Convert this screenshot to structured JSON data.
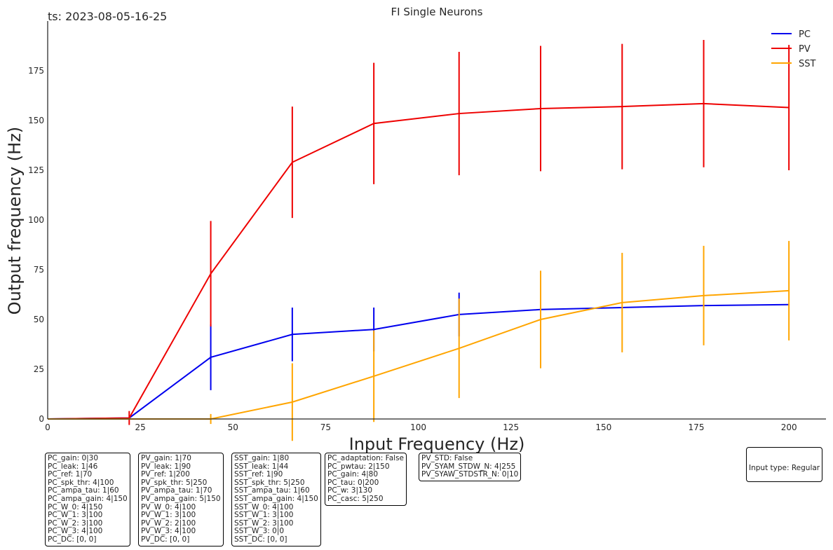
{
  "timestamp": "ts: 2023-08-05-16-25",
  "input_type": "Input type: Regular",
  "chart_data": {
    "type": "line",
    "title": "FI Single Neurons",
    "xlabel": "Input Frequency (Hz)",
    "ylabel": "Output frequency (Hz)",
    "xlim": [
      0,
      210
    ],
    "ylim": [
      0,
      200
    ],
    "xticks": [
      0,
      25,
      50,
      75,
      100,
      125,
      150,
      175,
      200
    ],
    "yticks": [
      0,
      25,
      50,
      75,
      100,
      125,
      150,
      175
    ],
    "grid": false,
    "legend_position": "top-right",
    "x": [
      0,
      22,
      44,
      66,
      88,
      111,
      133,
      155,
      177,
      200
    ],
    "series": [
      {
        "name": "PC",
        "color": "#0000ee",
        "values": [
          0,
          0.5,
          31,
          42.5,
          45,
          52.5,
          55,
          56,
          57,
          57.5
        ],
        "errors": [
          0,
          0,
          16.5,
          13.5,
          11,
          11,
          0,
          0,
          0,
          0
        ]
      },
      {
        "name": "PV",
        "color": "#ee0000",
        "values": [
          0,
          0.5,
          73,
          129,
          148.5,
          153.5,
          156,
          157,
          158.5,
          156.5
        ],
        "errors": [
          0,
          3.5,
          26.5,
          28,
          30.5,
          31,
          31.5,
          31.5,
          32,
          31.5
        ]
      },
      {
        "name": "SST",
        "color": "#ffa500",
        "values": [
          0,
          0,
          0,
          8.5,
          21.5,
          35.5,
          50,
          58.5,
          62,
          64.5
        ],
        "errors": [
          0,
          0,
          2.5,
          19.5,
          23,
          25,
          24.5,
          25,
          25,
          25
        ]
      }
    ]
  },
  "param_boxes": [
    {
      "lines": [
        "PC_gain: 0|30",
        "PC_leak: 1|46",
        "PC_ref: 1|70",
        "PC_spk_thr: 4|100",
        "PC_ampa_tau: 1|60",
        "PC_ampa_gain: 4|150",
        "PC_W_0: 4|150",
        "PC_W_1: 3|100",
        "PC_W_2: 3|100",
        "PC_W_3: 4|100",
        "PC_DC: [0, 0]"
      ]
    },
    {
      "lines": [
        "PV_gain: 1|70",
        "PV_leak: 1|90",
        "PV_ref: 1|200",
        "PV_spk_thr: 5|250",
        "PV_ampa_tau: 1|70",
        "PV_ampa_gain: 5|150",
        "PV_W_0: 4|100",
        "PV_W_1: 3|100",
        "PV_W_2: 2|100",
        "PV_W_3: 4|100",
        "PV_DC: [0, 0]"
      ]
    },
    {
      "lines": [
        "SST_gain: 1|80",
        "SST_leak: 1|44",
        "SST_ref: 1|90",
        "SST_spk_thr: 5|250",
        "SST_ampa_tau: 1|60",
        "SST_ampa_gain: 4|150",
        "SST_W_0: 4|100",
        "SST_W_1: 3|100",
        "SST_W_2: 3|100",
        "SST_W_3: 0|0",
        "SST_DC: [0, 0]"
      ]
    },
    {
      "lines": [
        "PC_adaptation: False",
        "PC_pwtau: 2|150",
        "PC_gain: 4|80",
        "PC_tau: 0|200",
        "PC_w: 3|130",
        "PC_casc: 5|250"
      ]
    },
    {
      "lines": [
        "PV_STD: False",
        "PV_SYAM_STDW_N: 4|255",
        "PV_SYAW_STDSTR_N: 0|10"
      ]
    }
  ]
}
